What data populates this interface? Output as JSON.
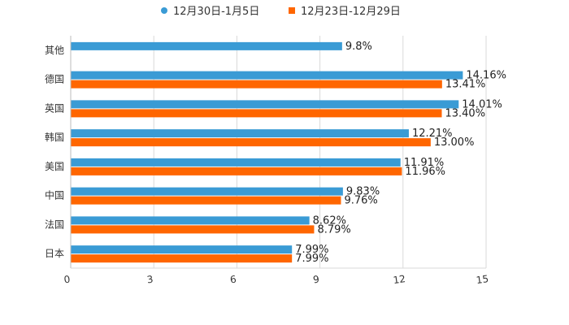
{
  "chart_data": {
    "type": "bar",
    "orientation": "horizontal",
    "legend_position": "top-center",
    "grid": true,
    "xlim": [
      0,
      15
    ],
    "x_ticks": [
      0,
      3,
      6,
      9,
      12,
      15
    ],
    "x_tick_labels": [
      "0",
      "3",
      "6",
      "9",
      "12",
      "15"
    ],
    "categories": [
      "其他",
      "德国",
      "英国",
      "韩国",
      "美国",
      "中国",
      "法国",
      "日本"
    ],
    "series": [
      {
        "name": "12月30日-1月5日",
        "color": "#3a9bd5",
        "legend_marker": "circle",
        "values": [
          9.8,
          14.16,
          14.01,
          12.21,
          11.91,
          9.83,
          8.62,
          7.99
        ],
        "labels": [
          "9.8%",
          "14.16%",
          "14.01%",
          "12.21%",
          "11.91%",
          "9.83%",
          "8.62%",
          "7.99%"
        ]
      },
      {
        "name": "12月23日-12月29日",
        "color": "#ff6600",
        "legend_marker": "square",
        "values": [
          null,
          13.41,
          13.4,
          13.0,
          11.96,
          9.76,
          8.79,
          7.99
        ],
        "labels": [
          null,
          "13.41%",
          "13.40%",
          "13.00%",
          "11.96%",
          "9.76%",
          "8.79%",
          "7.99%"
        ]
      }
    ]
  }
}
